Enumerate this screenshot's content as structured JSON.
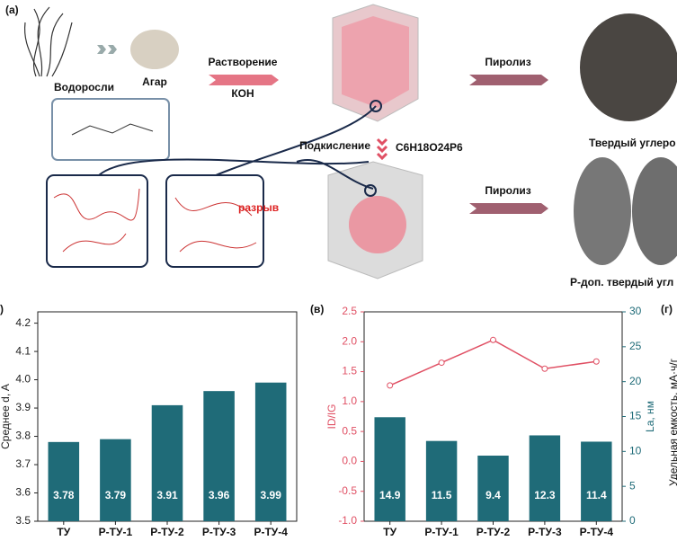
{
  "diagram": {
    "panel_label": "(a)",
    "seaweed": "Водоросли",
    "agar": "Агар",
    "dissolution": "Растворение",
    "koh": "КОН",
    "pyrolysis_1": "Пиролиз",
    "pyrolysis_2": "Пиролиз",
    "acidification": "Подкисление",
    "reagent": "C6H18O24P6",
    "break": "разрыв",
    "product_1": "Твердый углеро",
    "product_2": "Р-доп. твердый угл",
    "panel_b_label": ")",
    "panel_d_label": "(г)",
    "panel_d_ylabel": "Удельная емкость, мА·ч/г"
  },
  "chart_data": [
    {
      "type": "bar",
      "ylabel": "Среднее d, A",
      "categories": [
        "ТУ",
        "Р-ТУ-1",
        "Р-ТУ-2",
        "Р-ТУ-3",
        "Р-ТУ-4"
      ],
      "values": [
        3.78,
        3.79,
        3.91,
        3.96,
        3.99
      ],
      "color": "#1f6b78",
      "ylim": [
        3.5,
        4.24
      ],
      "yticks": [
        3.5,
        3.6,
        3.7,
        3.8,
        3.9,
        {
          "value": 4,
          "label": "4.0"
        },
        4.1,
        4.2
      ]
    },
    {
      "type": "combo",
      "panel_label": "(в)",
      "ylabel": "ID/IG",
      "y2label": "La, нм",
      "categories": [
        "ТУ",
        "Р-ТУ-1",
        "Р-ТУ-2",
        "Р-ТУ-3",
        "Р-ТУ-4"
      ],
      "series": [
        {
          "type": "line",
          "color": "#e05064",
          "values": [
            1.27,
            1.65,
            2.03,
            1.55,
            1.67
          ]
        },
        {
          "type": "bar",
          "axis": "y2",
          "color": "#1f6b78",
          "values": [
            14.9,
            11.5,
            9.4,
            12.3,
            11.4
          ]
        }
      ],
      "ylim": [
        -1,
        2.5
      ],
      "yticks": [
        {
          "value": -1,
          "label": "-1.0"
        },
        -0.5,
        {
          "value": 0,
          "label": "0.0"
        },
        0.5,
        {
          "value": 1,
          "label": "1.0"
        },
        1.5,
        {
          "value": 2,
          "label": "2.0"
        },
        2.5
      ],
      "y2lim": [
        0,
        30
      ],
      "y2ticks": [
        0,
        5,
        10,
        15,
        20,
        25,
        30
      ]
    }
  ]
}
